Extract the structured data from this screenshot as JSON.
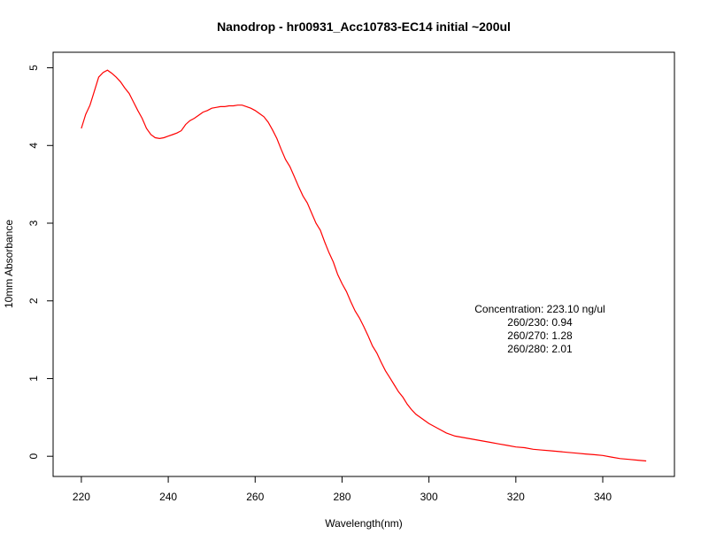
{
  "chart_data": {
    "type": "line",
    "title": "Nanodrop - hr00931_Acc10783-EC14 initial ~200ul",
    "xlabel": "Wavelength(nm)",
    "ylabel": "10mm Absorbance",
    "xlim": [
      213.5,
      356.5
    ],
    "ylim": [
      -0.26,
      5.2
    ],
    "xticks": [
      220,
      240,
      260,
      280,
      300,
      320,
      340
    ],
    "yticks": [
      0,
      1,
      2,
      3,
      4,
      5
    ],
    "grid": false,
    "series": [
      {
        "color": "#ff0000",
        "x": [
          220,
          221,
          222,
          223,
          224,
          225,
          226,
          227,
          228,
          229,
          230,
          231,
          232,
          233,
          234,
          235,
          236,
          237,
          238,
          239,
          240,
          241,
          242,
          243,
          244,
          245,
          246,
          247,
          248,
          249,
          250,
          251,
          252,
          253,
          254,
          255,
          256,
          257,
          258,
          259,
          260,
          261,
          262,
          263,
          264,
          265,
          266,
          267,
          268,
          269,
          270,
          271,
          272,
          273,
          274,
          275,
          276,
          277,
          278,
          279,
          280,
          281,
          282,
          283,
          284,
          285,
          286,
          287,
          288,
          289,
          290,
          291,
          292,
          293,
          294,
          295,
          296,
          297,
          298,
          299,
          300,
          302,
          304,
          306,
          308,
          310,
          312,
          314,
          316,
          318,
          320,
          322,
          324,
          326,
          328,
          330,
          332,
          334,
          336,
          338,
          340,
          342,
          344,
          346,
          348,
          350
        ],
        "y": [
          4.22,
          4.4,
          4.52,
          4.7,
          4.88,
          4.94,
          4.97,
          4.93,
          4.88,
          4.82,
          4.74,
          4.67,
          4.56,
          4.45,
          4.35,
          4.22,
          4.14,
          4.1,
          4.09,
          4.1,
          4.12,
          4.14,
          4.16,
          4.19,
          4.27,
          4.32,
          4.35,
          4.39,
          4.43,
          4.45,
          4.48,
          4.49,
          4.5,
          4.5,
          4.51,
          4.51,
          4.52,
          4.52,
          4.5,
          4.48,
          4.45,
          4.41,
          4.37,
          4.3,
          4.2,
          4.09,
          3.95,
          3.82,
          3.73,
          3.6,
          3.47,
          3.35,
          3.26,
          3.13,
          3.0,
          2.91,
          2.76,
          2.62,
          2.5,
          2.34,
          2.22,
          2.12,
          1.99,
          1.87,
          1.78,
          1.67,
          1.55,
          1.42,
          1.33,
          1.21,
          1.1,
          1.01,
          0.92,
          0.83,
          0.76,
          0.67,
          0.6,
          0.54,
          0.5,
          0.46,
          0.42,
          0.36,
          0.3,
          0.26,
          0.24,
          0.22,
          0.2,
          0.18,
          0.16,
          0.14,
          0.12,
          0.11,
          0.09,
          0.08,
          0.07,
          0.06,
          0.05,
          0.04,
          0.03,
          0.02,
          0.01,
          -0.01,
          -0.03,
          -0.04,
          -0.05,
          -0.06
        ]
      }
    ],
    "annotations": [
      "Concentration: 223.10 ng/ul",
      "260/230: 0.94",
      "260/270: 1.28",
      "260/280: 2.01"
    ]
  }
}
